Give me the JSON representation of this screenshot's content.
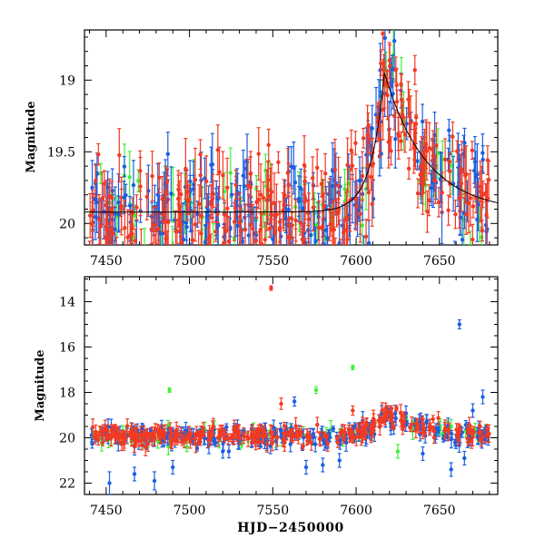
{
  "colors": {
    "series_blue": "#1b5fe0",
    "series_green": "#3ff03a",
    "series_red": "#f23a22",
    "model_curve": "#000000"
  },
  "chart_data": [
    {
      "type": "scatter",
      "panel": "top",
      "ylabel": "Magnitude",
      "xlabel": "",
      "xlim": [
        7437,
        7685
      ],
      "ylim": [
        20.15,
        18.65
      ],
      "y_inverted": true,
      "xticks": [
        7450,
        7500,
        7550,
        7600,
        7650
      ],
      "xtick_labels": [
        "7450",
        "7500",
        "7550",
        "7600",
        "7650"
      ],
      "yticks": [
        19,
        19.5,
        20
      ],
      "ytick_labels": [
        "19",
        "19.5",
        "20"
      ],
      "series": [
        {
          "color_key": "series_blue",
          "errorbars": true
        },
        {
          "color_key": "series_green",
          "errorbars": true
        },
        {
          "color_key": "series_red",
          "errorbars": true
        }
      ],
      "model": {
        "baseline": 19.92,
        "peak_x": 7617,
        "peak_mag": 18.95,
        "rise_days": 8,
        "fall_days": 25
      },
      "generator": {
        "seed": 7,
        "x_start": 7440,
        "x_end": 7680,
        "n_blue": 260,
        "n_green": 70,
        "n_red": 300,
        "scatter_mag": 0.18,
        "err_min": 0.06,
        "err_max": 0.22
      }
    },
    {
      "type": "scatter",
      "panel": "bottom",
      "ylabel": "Magnitude",
      "xlabel": "HJD−2450000",
      "xlim": [
        7437,
        7685
      ],
      "ylim": [
        22.5,
        12.9
      ],
      "y_inverted": true,
      "xticks": [
        7450,
        7500,
        7550,
        7600,
        7650
      ],
      "xtick_labels": [
        "7450",
        "7500",
        "7550",
        "7600",
        "7650"
      ],
      "yticks": [
        14,
        16,
        18,
        20,
        22
      ],
      "ytick_labels": [
        "14",
        "16",
        "18",
        "20",
        "22"
      ],
      "series": [
        {
          "color_key": "series_blue",
          "errorbars": true
        },
        {
          "color_key": "series_green",
          "errorbars": true
        },
        {
          "color_key": "series_red",
          "errorbars": true
        }
      ],
      "outliers": [
        {
          "x": 7549,
          "y": 13.4,
          "color_key": "series_red",
          "err": 0.1
        },
        {
          "x": 7662,
          "y": 15.0,
          "color_key": "series_blue",
          "err": 0.2
        },
        {
          "x": 7598,
          "y": 16.9,
          "color_key": "series_green",
          "err": 0.1
        },
        {
          "x": 7488,
          "y": 17.9,
          "color_key": "series_green",
          "err": 0.1
        },
        {
          "x": 7576,
          "y": 17.9,
          "color_key": "series_green",
          "err": 0.15
        },
        {
          "x": 7555,
          "y": 18.5,
          "color_key": "series_red",
          "err": 0.25
        },
        {
          "x": 7563,
          "y": 18.4,
          "color_key": "series_blue",
          "err": 0.2
        },
        {
          "x": 7676,
          "y": 18.2,
          "color_key": "series_blue",
          "err": 0.3
        },
        {
          "x": 7670,
          "y": 18.8,
          "color_key": "series_blue",
          "err": 0.3
        },
        {
          "x": 7598,
          "y": 18.8,
          "color_key": "series_red",
          "err": 0.2
        },
        {
          "x": 7467,
          "y": 21.6,
          "color_key": "series_blue",
          "err": 0.3
        },
        {
          "x": 7479,
          "y": 21.9,
          "color_key": "series_blue",
          "err": 0.4
        },
        {
          "x": 7452,
          "y": 22.0,
          "color_key": "series_blue",
          "err": 0.5
        },
        {
          "x": 7490,
          "y": 21.3,
          "color_key": "series_blue",
          "err": 0.3
        },
        {
          "x": 7570,
          "y": 21.3,
          "color_key": "series_blue",
          "err": 0.3
        },
        {
          "x": 7580,
          "y": 21.2,
          "color_key": "series_blue",
          "err": 0.3
        },
        {
          "x": 7657,
          "y": 21.4,
          "color_key": "series_blue",
          "err": 0.3
        },
        {
          "x": 7665,
          "y": 20.9,
          "color_key": "series_blue",
          "err": 0.3
        },
        {
          "x": 7625,
          "y": 20.6,
          "color_key": "series_green",
          "err": 0.3
        },
        {
          "x": 7640,
          "y": 20.7,
          "color_key": "series_blue",
          "err": 0.3
        },
        {
          "x": 7590,
          "y": 21.0,
          "color_key": "series_blue",
          "err": 0.3
        },
        {
          "x": 7520,
          "y": 20.6,
          "color_key": "series_blue",
          "err": 0.3
        }
      ]
    }
  ]
}
